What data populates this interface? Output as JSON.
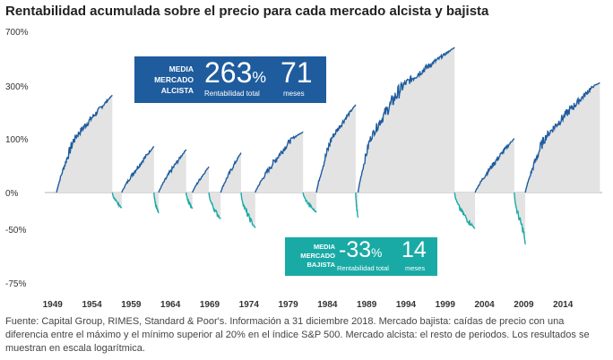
{
  "title": "Rentabilidad acumulada sobre el precio para cada mercado alcista y bajista",
  "colors": {
    "bull_line": "#1f5c9e",
    "bear_line": "#1aaaa6",
    "fill": "#e3e3e3",
    "grid": "#d6d6d6"
  },
  "bull_box": {
    "label_line1": "MEDIA",
    "label_line2": "MERCADO",
    "label_line3": "ALCISTA",
    "return_value": "263",
    "return_unit": "%",
    "return_caption": "Rentabilidad total",
    "duration_value": "71",
    "duration_caption": "meses"
  },
  "bear_box": {
    "label_line1": "MEDIA",
    "label_line2": "MERCADO",
    "label_line3": "BAJISTA",
    "return_value": "-33",
    "return_unit": "%",
    "return_caption": "Rentabilidad total",
    "duration_value": "14",
    "duration_caption": "meses"
  },
  "footnote": "Fuente: Capital Group, RIMES, Standard & Poor's. Información a 31 diciembre 2018. Mercado bajista: caídas de precio con una diferencia entre el máximo y el mínimo superior al 20% en el índice S&P 500. Mercado alcista: el resto de periodos. Los resultados se muestran en escala logarítmica.",
  "chart_data": {
    "type": "area",
    "y_scale": "log (cumulative return)",
    "y_ticks": [
      {
        "label": "700%",
        "value": 700
      },
      {
        "label": "300%",
        "value": 300
      },
      {
        "label": "100%",
        "value": 100
      },
      {
        "label": "0%",
        "value": 0
      },
      {
        "label": "-50%",
        "value": -50
      },
      {
        "label": "-75%",
        "value": -75
      }
    ],
    "x_ticks": [
      "1949",
      "1954",
      "1959",
      "1964",
      "1969",
      "1974",
      "1979",
      "1984",
      "1989",
      "1994",
      "1999",
      "2004",
      "2009",
      "2014"
    ],
    "x_range": [
      1948.0,
      2019.0
    ],
    "bull_markets": [
      {
        "start": 1949.5,
        "end": 1956.6,
        "peak_return": 265
      },
      {
        "start": 1957.8,
        "end": 1961.9,
        "peak_return": 86
      },
      {
        "start": 1962.5,
        "end": 1966.0,
        "peak_return": 80
      },
      {
        "start": 1966.8,
        "end": 1968.9,
        "peak_return": 48
      },
      {
        "start": 1970.4,
        "end": 1973.0,
        "peak_return": 74
      },
      {
        "start": 1974.8,
        "end": 1980.9,
        "peak_return": 126
      },
      {
        "start": 1982.6,
        "end": 1987.6,
        "peak_return": 229
      },
      {
        "start": 1987.9,
        "end": 2000.2,
        "peak_return": 582
      },
      {
        "start": 2002.8,
        "end": 2007.8,
        "peak_return": 101
      },
      {
        "start": 2009.2,
        "end": 2018.7,
        "peak_return": 323
      }
    ],
    "bear_markets": [
      {
        "start": 1956.6,
        "end": 1957.8,
        "trough_return": -21
      },
      {
        "start": 1961.9,
        "end": 1962.5,
        "trough_return": -28
      },
      {
        "start": 1966.0,
        "end": 1966.8,
        "trough_return": -22
      },
      {
        "start": 1968.9,
        "end": 1970.4,
        "trough_return": -36
      },
      {
        "start": 1973.0,
        "end": 1974.8,
        "trough_return": -48
      },
      {
        "start": 1980.9,
        "end": 1982.6,
        "trough_return": -27
      },
      {
        "start": 1987.6,
        "end": 1987.9,
        "trough_return": -34
      },
      {
        "start": 2000.2,
        "end": 2002.8,
        "trough_return": -49
      },
      {
        "start": 2007.8,
        "end": 2009.2,
        "trough_return": -57
      }
    ]
  }
}
